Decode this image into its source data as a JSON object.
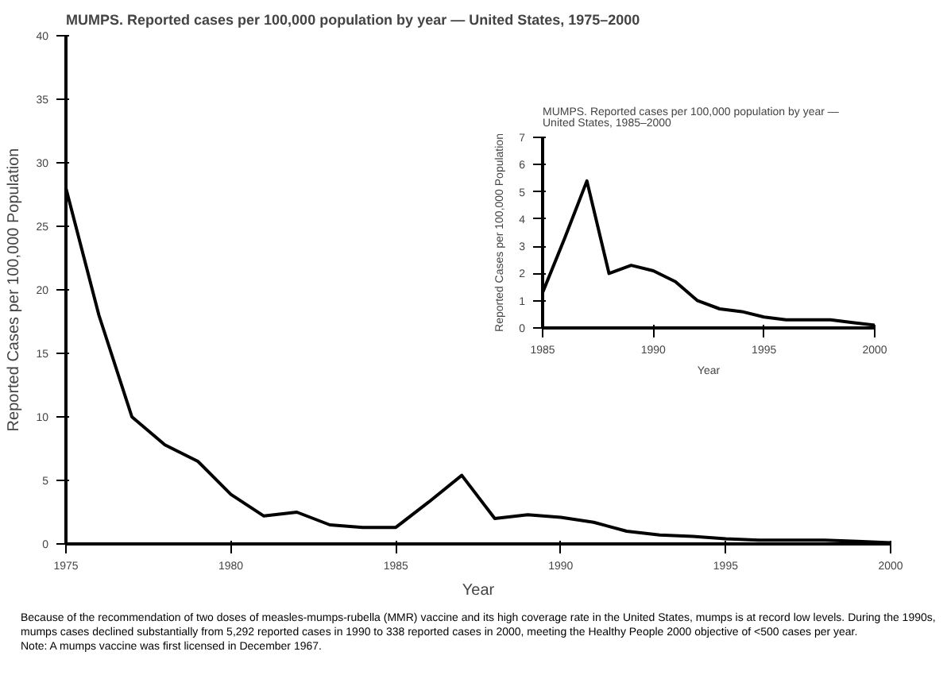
{
  "chart_data": [
    {
      "type": "line",
      "title": "MUMPS. Reported cases per 100,000 population by year — United States, 1975–2000",
      "xlabel": "Year",
      "ylabel": "Reported Cases per 100,000 Population",
      "x": [
        1975,
        1976,
        1977,
        1978,
        1979,
        1980,
        1981,
        1982,
        1983,
        1984,
        1985,
        1986,
        1987,
        1988,
        1989,
        1990,
        1991,
        1992,
        1993,
        1994,
        1995,
        1996,
        1997,
        1998,
        1999,
        2000
      ],
      "series": [
        {
          "color": "#000000",
          "values": [
            28,
            18,
            10,
            7.8,
            6.5,
            3.9,
            2.2,
            2.5,
            1.5,
            1.3,
            1.3,
            3.3,
            5.4,
            2.0,
            2.3,
            2.1,
            1.7,
            1.0,
            0.7,
            0.6,
            0.4,
            0.3,
            0.3,
            0.3,
            0.2,
            0.1
          ]
        }
      ],
      "xlim": [
        1975,
        2000
      ],
      "xticks": [
        1975,
        1980,
        1985,
        1990,
        1995,
        2000
      ],
      "ylim": [
        0,
        40
      ],
      "yticks": [
        0,
        5,
        10,
        15,
        20,
        25,
        30,
        35,
        40
      ],
      "annotations": [
        "Because of the recommendation of two doses of measles-mumps-rubella (MMR) vaccine and its high coverage rate in the United States, mumps is at record low levels. During the 1990s, mumps cases declined substantially from 5,292 reported cases in 1990 to 338 reported cases in 2000, meeting the Healthy People 2000 objective of <500 cases per year.",
        "Note: A mumps vaccine was first licensed in December 1967."
      ]
    },
    {
      "type": "line",
      "title": "MUMPS. Reported cases per 100,000 population by year — United States, 1985–2000",
      "xlabel": "Year",
      "ylabel": "Reported Cases per 100,000 Population",
      "x": [
        1985,
        1986,
        1987,
        1988,
        1989,
        1990,
        1991,
        1992,
        1993,
        1994,
        1995,
        1996,
        1997,
        1998,
        1999,
        2000
      ],
      "series": [
        {
          "color": "#000000",
          "values": [
            1.3,
            3.3,
            5.4,
            2.0,
            2.3,
            2.1,
            1.7,
            1.0,
            0.7,
            0.6,
            0.4,
            0.3,
            0.3,
            0.3,
            0.2,
            0.1
          ]
        }
      ],
      "xlim": [
        1985,
        2000
      ],
      "xticks": [
        1985,
        1990,
        1995,
        2000
      ],
      "ylim": [
        0,
        7
      ],
      "yticks": [
        0,
        1,
        2,
        3,
        4,
        5,
        6,
        7
      ]
    }
  ]
}
